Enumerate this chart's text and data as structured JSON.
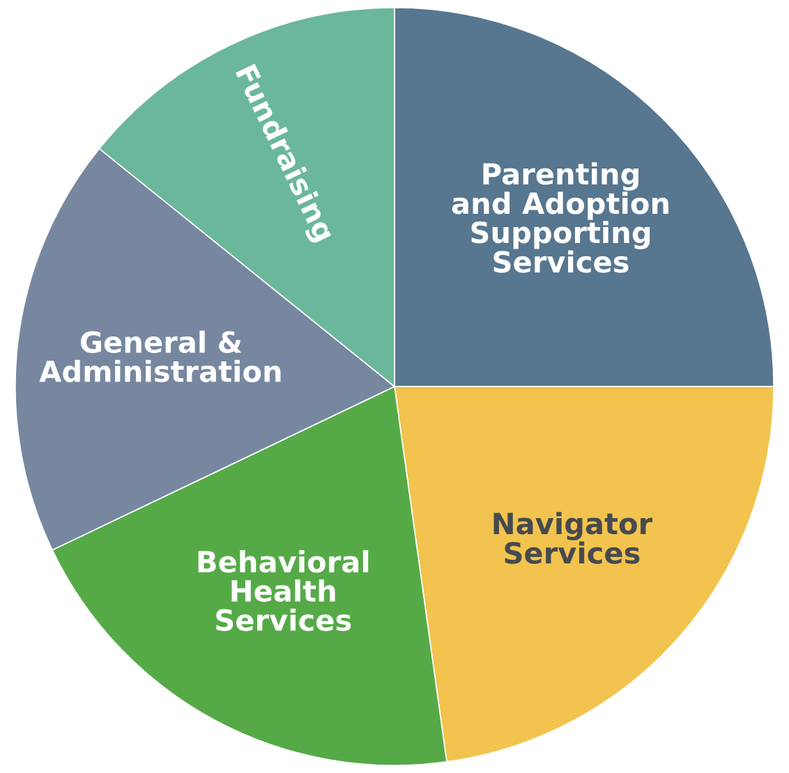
{
  "chart_data": {
    "type": "pie",
    "categories": [
      "Parenting\nand Adoption\nSupporting\nServices",
      "Navigator\nServices",
      "Behavioral\nHealth\nServices",
      "General &\nAdministration",
      "Fundraising"
    ],
    "values": [
      25,
      22.8,
      20.1,
      17.9,
      14.2
    ],
    "colors": [
      "#57768f",
      "#f2c34e",
      "#55aa47",
      "#7787a0",
      "#6bb79c"
    ]
  }
}
